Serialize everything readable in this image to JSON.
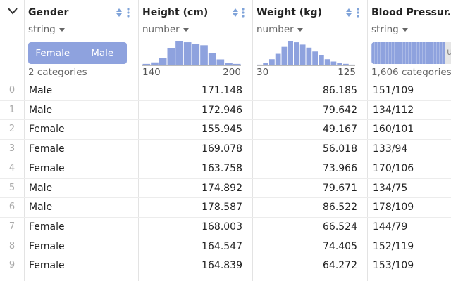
{
  "columns": [
    {
      "title": "Gender",
      "type": "string",
      "categories": [
        "Female",
        "Male"
      ],
      "footer": "2 categories"
    },
    {
      "title": "Height (cm)",
      "type": "number",
      "hist": [
        2,
        4,
        10,
        23,
        32,
        31,
        29,
        27,
        16,
        8,
        3,
        2
      ],
      "min": "140",
      "max": "200"
    },
    {
      "title": "Weight (kg)",
      "type": "number",
      "hist": [
        1,
        3,
        8,
        15,
        24,
        31,
        30,
        27,
        23,
        18,
        13,
        8,
        5,
        3,
        2,
        1
      ],
      "min": "30",
      "max": "125"
    },
    {
      "title": "Blood Pressur...",
      "type": "string",
      "other_label": "u",
      "footer": "1,606 categories"
    }
  ],
  "rows": [
    {
      "idx": "0",
      "gender": "Male",
      "height": "171.148",
      "weight": "86.185",
      "bp": "151/109"
    },
    {
      "idx": "1",
      "gender": "Male",
      "height": "172.946",
      "weight": "79.642",
      "bp": "134/112"
    },
    {
      "idx": "2",
      "gender": "Female",
      "height": "155.945",
      "weight": "49.167",
      "bp": "160/101"
    },
    {
      "idx": "3",
      "gender": "Female",
      "height": "169.078",
      "weight": "56.018",
      "bp": "133/94"
    },
    {
      "idx": "4",
      "gender": "Female",
      "height": "163.758",
      "weight": "73.966",
      "bp": "170/106"
    },
    {
      "idx": "5",
      "gender": "Male",
      "height": "174.892",
      "weight": "79.671",
      "bp": "134/75"
    },
    {
      "idx": "6",
      "gender": "Male",
      "height": "178.587",
      "weight": "86.522",
      "bp": "178/109"
    },
    {
      "idx": "7",
      "gender": "Female",
      "height": "168.003",
      "weight": "66.524",
      "bp": "144/79"
    },
    {
      "idx": "8",
      "gender": "Female",
      "height": "164.547",
      "weight": "74.405",
      "bp": "152/119"
    },
    {
      "idx": "9",
      "gender": "Female",
      "height": "164.839",
      "weight": "64.272",
      "bp": "153/109"
    }
  ],
  "colors": {
    "accent": "#8ea2de",
    "icon": "#7fa3d9"
  }
}
